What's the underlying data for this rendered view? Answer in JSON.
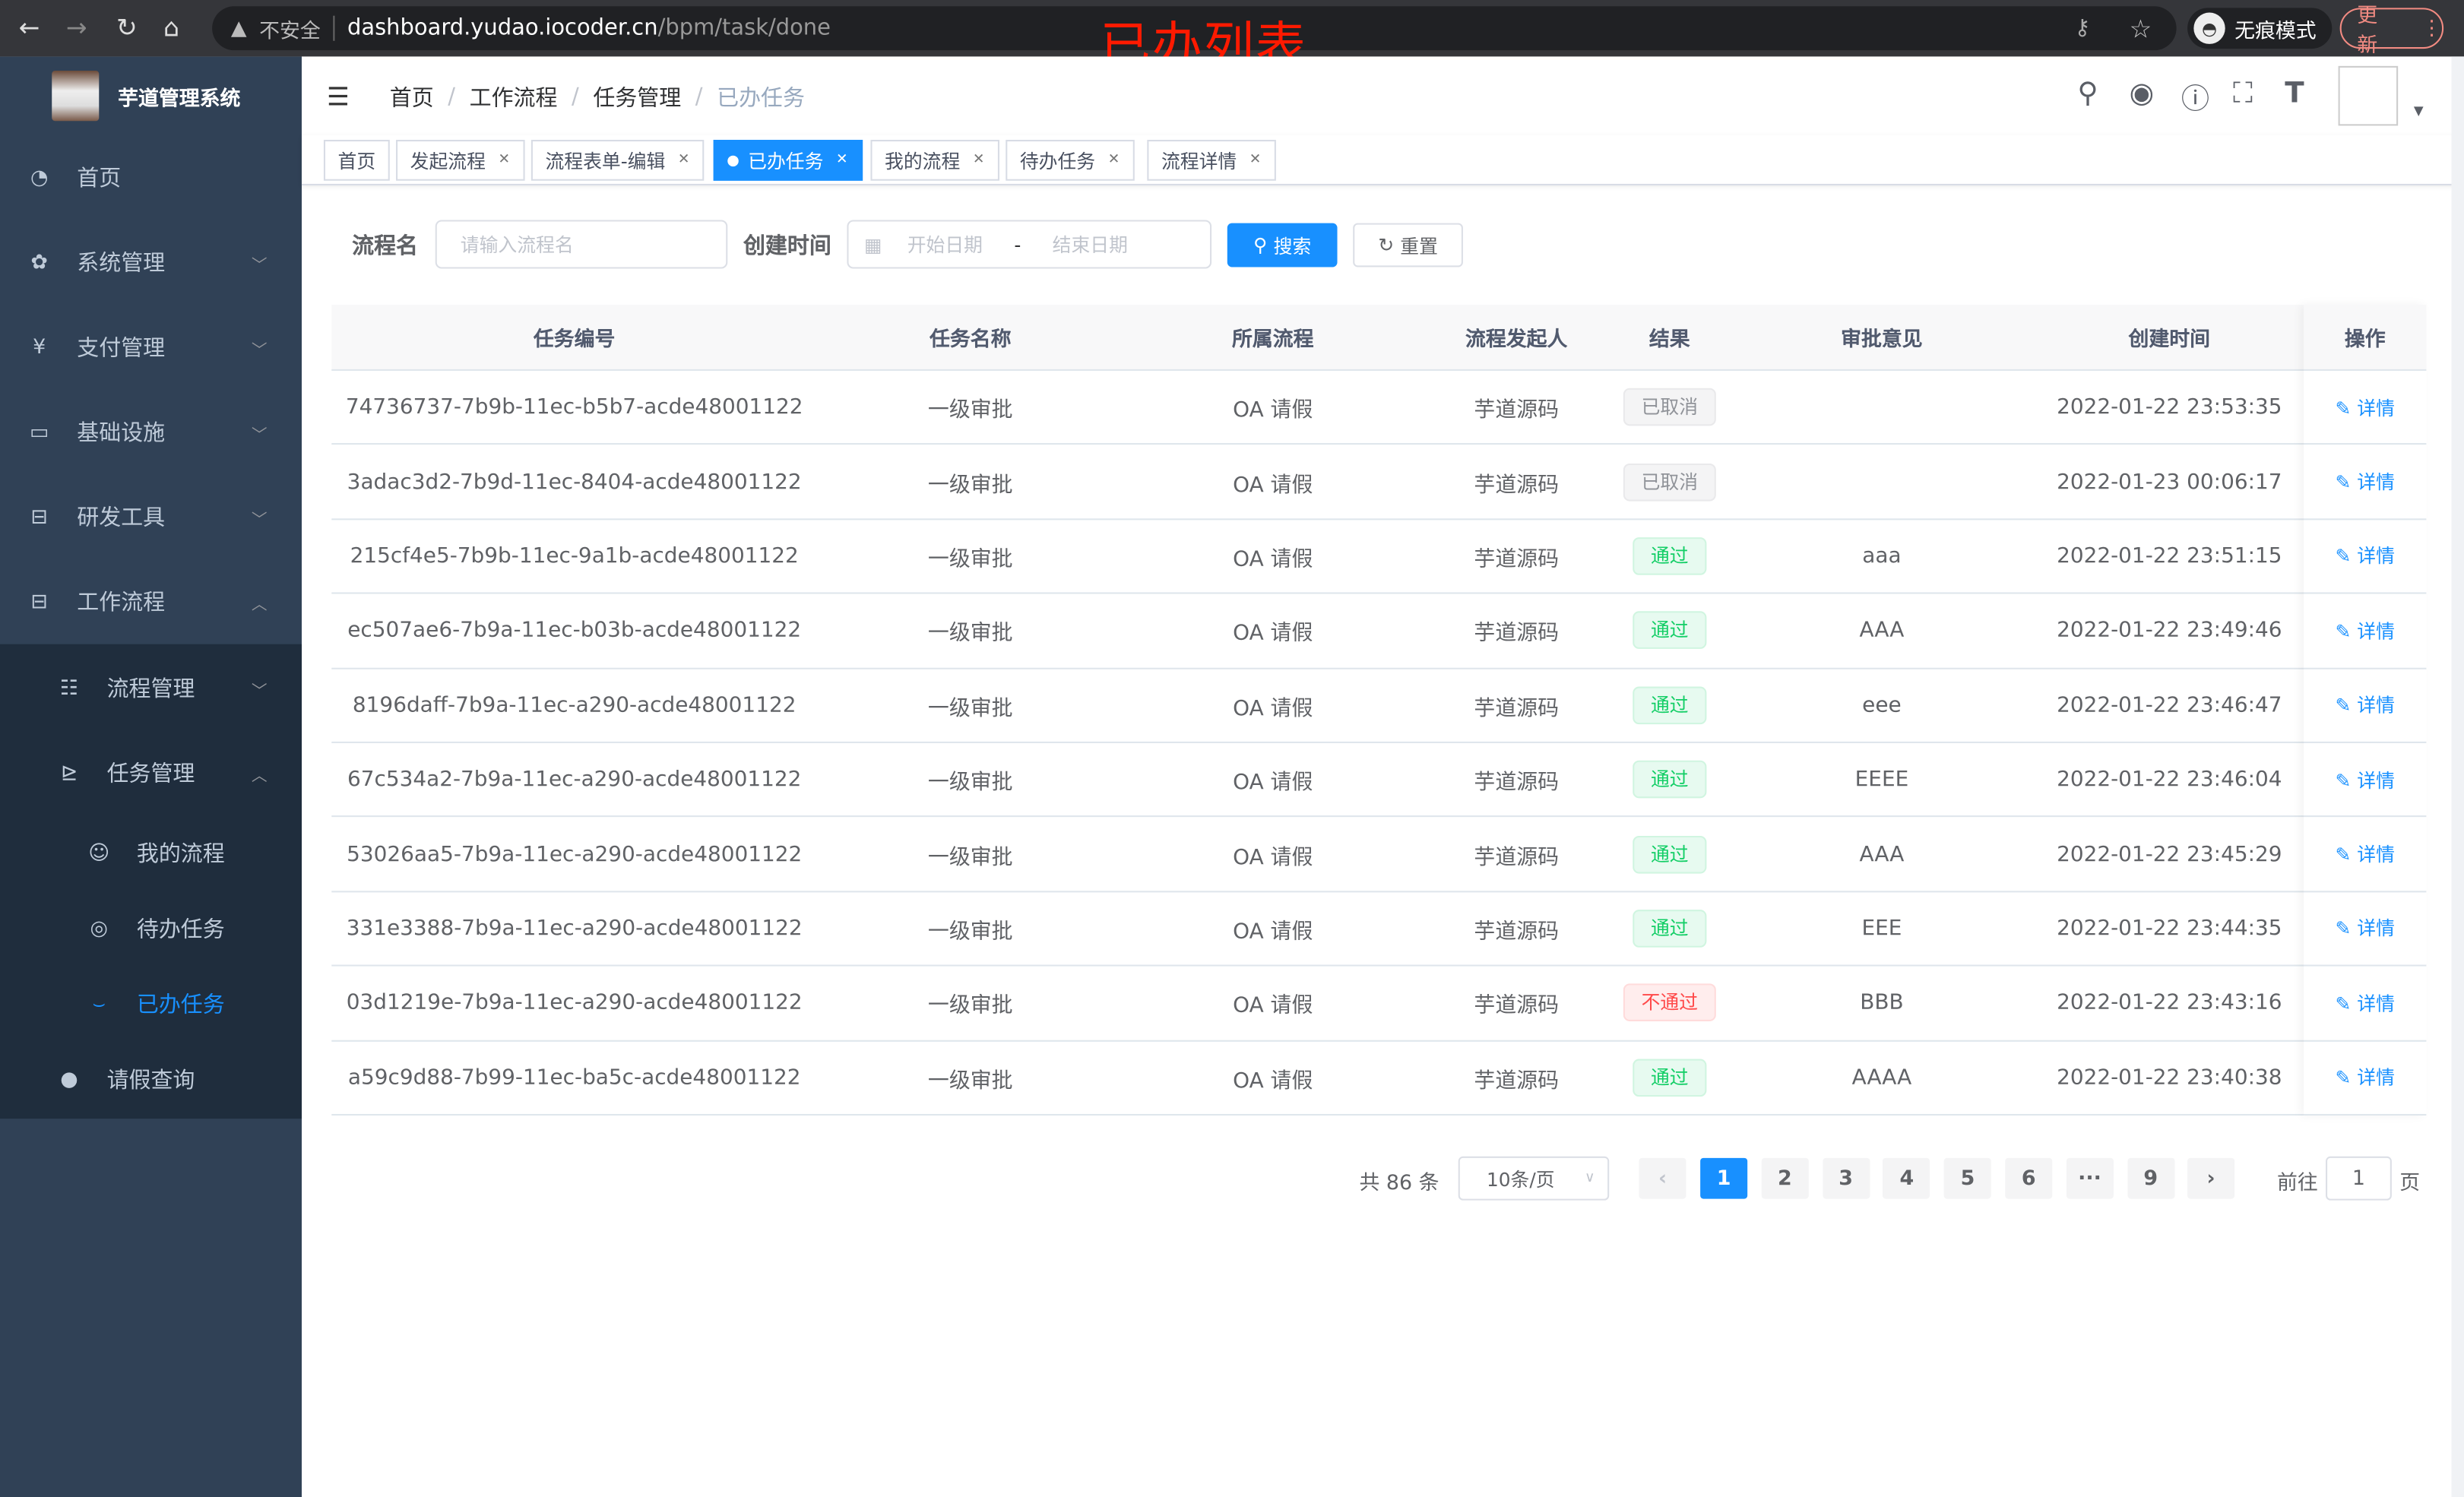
{
  "browser": {
    "insecure": "不安全",
    "url_host": "dashboard.yudao.iocoder.cn",
    "url_path": "/bpm/task/done",
    "incognito": "无痕模式",
    "update": "更新"
  },
  "annotation": "已办列表",
  "app": {
    "title": "芋道管理系统"
  },
  "sidebar": {
    "items": [
      {
        "label": "首页",
        "icon": "dashboard-icon"
      },
      {
        "label": "系统管理",
        "icon": "gear-icon"
      },
      {
        "label": "支付管理",
        "icon": "yen-icon"
      },
      {
        "label": "基础设施",
        "icon": "monitor-icon"
      },
      {
        "label": "研发工具",
        "icon": "toolbox-icon"
      },
      {
        "label": "工作流程",
        "icon": "toolbox-icon"
      }
    ],
    "sub": [
      {
        "label": "流程管理",
        "icon": "list-icon"
      },
      {
        "label": "任务管理",
        "icon": "task-icon"
      },
      {
        "label": "我的流程",
        "icon": "user-face-icon"
      },
      {
        "label": "待办任务",
        "icon": "eye-icon"
      },
      {
        "label": "已办任务",
        "icon": "eye-closed-icon"
      },
      {
        "label": "请假查询",
        "icon": "user-icon"
      }
    ]
  },
  "breadcrumb": [
    "首页",
    "工作流程",
    "任务管理",
    "已办任务"
  ],
  "tags": [
    {
      "label": "首页"
    },
    {
      "label": "发起流程"
    },
    {
      "label": "流程表单-编辑"
    },
    {
      "label": "已办任务"
    },
    {
      "label": "我的流程"
    },
    {
      "label": "待办任务"
    },
    {
      "label": "流程详情"
    }
  ],
  "search": {
    "name_label": "流程名",
    "name_placeholder": "请输入流程名",
    "time_label": "创建时间",
    "start_placeholder": "开始日期",
    "range_sep": "-",
    "end_placeholder": "结束日期",
    "search_btn": "搜索",
    "reset_btn": "重置"
  },
  "table": {
    "columns": [
      "任务编号",
      "任务名称",
      "所属流程",
      "流程发起人",
      "结果",
      "审批意见",
      "创建时间",
      "操作"
    ],
    "detail_label": "详情",
    "rows": [
      {
        "id": "74736737-7b9b-11ec-b5b7-acde48001122",
        "name": "一级审批",
        "process": "OA 请假",
        "starter": "芋道源码",
        "result": "已取消",
        "status": "info",
        "comment": "",
        "time": "2022-01-22 23:53:35"
      },
      {
        "id": "3adac3d2-7b9d-11ec-8404-acde48001122",
        "name": "一级审批",
        "process": "OA 请假",
        "starter": "芋道源码",
        "result": "已取消",
        "status": "info",
        "comment": "",
        "time": "2022-01-23 00:06:17"
      },
      {
        "id": "215cf4e5-7b9b-11ec-9a1b-acde48001122",
        "name": "一级审批",
        "process": "OA 请假",
        "starter": "芋道源码",
        "result": "通过",
        "status": "success",
        "comment": "aaa",
        "time": "2022-01-22 23:51:15"
      },
      {
        "id": "ec507ae6-7b9a-11ec-b03b-acde48001122",
        "name": "一级审批",
        "process": "OA 请假",
        "starter": "芋道源码",
        "result": "通过",
        "status": "success",
        "comment": "AAA",
        "time": "2022-01-22 23:49:46"
      },
      {
        "id": "8196daff-7b9a-11ec-a290-acde48001122",
        "name": "一级审批",
        "process": "OA 请假",
        "starter": "芋道源码",
        "result": "通过",
        "status": "success",
        "comment": "eee",
        "time": "2022-01-22 23:46:47"
      },
      {
        "id": "67c534a2-7b9a-11ec-a290-acde48001122",
        "name": "一级审批",
        "process": "OA 请假",
        "starter": "芋道源码",
        "result": "通过",
        "status": "success",
        "comment": "EEEE",
        "time": "2022-01-22 23:46:04"
      },
      {
        "id": "53026aa5-7b9a-11ec-a290-acde48001122",
        "name": "一级审批",
        "process": "OA 请假",
        "starter": "芋道源码",
        "result": "通过",
        "status": "success",
        "comment": "AAA",
        "time": "2022-01-22 23:45:29"
      },
      {
        "id": "331e3388-7b9a-11ec-a290-acde48001122",
        "name": "一级审批",
        "process": "OA 请假",
        "starter": "芋道源码",
        "result": "通过",
        "status": "success",
        "comment": "EEE",
        "time": "2022-01-22 23:44:35"
      },
      {
        "id": "03d1219e-7b9a-11ec-a290-acde48001122",
        "name": "一级审批",
        "process": "OA 请假",
        "starter": "芋道源码",
        "result": "不通过",
        "status": "danger",
        "comment": "BBB",
        "time": "2022-01-22 23:43:16"
      },
      {
        "id": "a59c9d88-7b99-11ec-ba5c-acde48001122",
        "name": "一级审批",
        "process": "OA 请假",
        "starter": "芋道源码",
        "result": "通过",
        "status": "success",
        "comment": "AAAA",
        "time": "2022-01-22 23:40:38"
      }
    ]
  },
  "pagination": {
    "total": "共 86 条",
    "page_size": "10条/页",
    "pages": [
      "1",
      "2",
      "3",
      "4",
      "5",
      "6",
      "···",
      "9"
    ],
    "current": "1",
    "jump_prefix": "前往",
    "jump_value": "1",
    "jump_suffix": "页"
  },
  "colors": {
    "accent": "#1890ff",
    "sidebar": "#304156",
    "submenu": "#1f2d3d",
    "success": "#13ce66",
    "danger": "#ff4949",
    "info": "#909399",
    "annotation": "#ff1a00"
  }
}
